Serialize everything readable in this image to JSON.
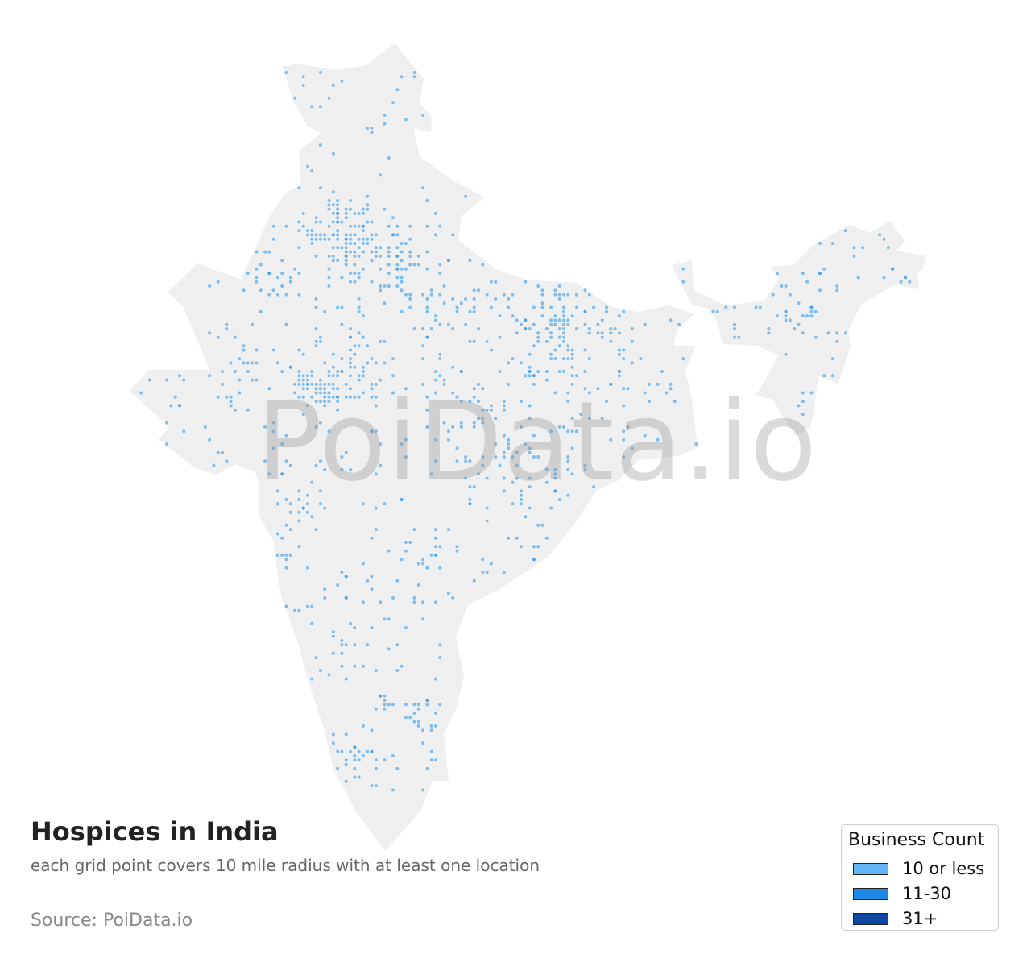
{
  "title": "Hospices in India",
  "subtitle": "each grid point covers 10 mile radius with at least one location",
  "source": "Source: PoiData.io",
  "watermark": "PoiData.io",
  "colors": {
    "land": "#efefef",
    "point_low": "#5aacec",
    "point_mid": "#1e88e5",
    "point_high": "#0d47a1"
  },
  "legend": {
    "title": "Business Count",
    "items": [
      {
        "label": "10 or less",
        "color": "#64b5f6"
      },
      {
        "label": "11-30",
        "color": "#1e88e5"
      },
      {
        "label": "31+",
        "color": "#0d47a1"
      }
    ]
  }
}
